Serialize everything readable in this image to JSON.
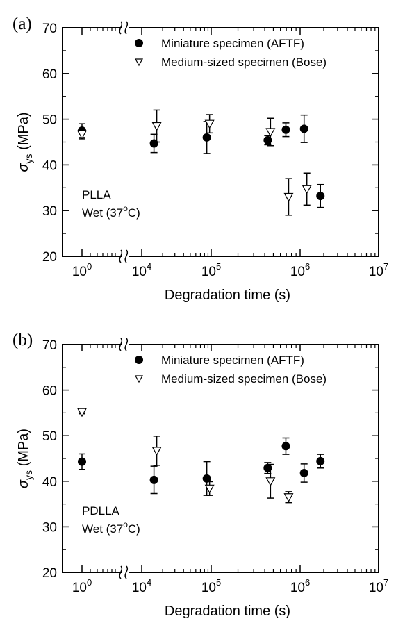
{
  "chart_data": [
    {
      "type": "scatter",
      "panel_label": "(a)",
      "xlabel": "Degradation time (s)",
      "ylabel": "σ",
      "ylabel_sub": "ys",
      "ylabel_unit": " (MPa)",
      "xscale": "log",
      "axis_break": "between 10^0 and 10^4",
      "ylim": [
        20,
        70
      ],
      "yticks": [
        20,
        30,
        40,
        50,
        60,
        70
      ],
      "xtick_labels": [
        {
          "base": "10",
          "exp": "0"
        },
        {
          "base": "10",
          "exp": "4"
        },
        {
          "base": "10",
          "exp": "5"
        },
        {
          "base": "10",
          "exp": "6"
        },
        {
          "base": "10",
          "exp": "7"
        }
      ],
      "legend_position": "top-right",
      "annotation": [
        "PLLA",
        "Wet (37",
        "o",
        "C)"
      ],
      "series": [
        {
          "name": "Miniature specimen (AFTF)",
          "marker": "filled-circle",
          "points": [
            {
              "x": 1,
              "y": 47.5,
              "err": 1.5
            },
            {
              "x": 15000,
              "y": 44.7,
              "err": 2.0
            },
            {
              "x": 86400,
              "y": 46.0,
              "err": 3.5
            },
            {
              "x": 432000,
              "y": 45.4,
              "err": 1.0
            },
            {
              "x": 691200,
              "y": 47.7,
              "err": 1.5
            },
            {
              "x": 1123200,
              "y": 47.9,
              "err": 3.0
            },
            {
              "x": 1814400,
              "y": 33.2,
              "err": 2.5
            }
          ]
        },
        {
          "name": "Medium-sized specimen (Bose)",
          "marker": "open-triangle-down",
          "points": [
            {
              "x": 1,
              "y": 46.7,
              "err": 1.0
            },
            {
              "x": 15000,
              "y": 48.5,
              "err": 3.5
            },
            {
              "x": 86400,
              "y": 49.0,
              "err": 2.0
            },
            {
              "x": 432000,
              "y": 47.2,
              "err": 3.0
            },
            {
              "x": 691200,
              "y": 33.0,
              "err": 4.0
            },
            {
              "x": 1123200,
              "y": 34.7,
              "err": 3.5
            }
          ]
        }
      ]
    },
    {
      "type": "scatter",
      "panel_label": "(b)",
      "xlabel": "Degradation time (s)",
      "ylabel": "σ",
      "ylabel_sub": "ys",
      "ylabel_unit": " (MPa)",
      "xscale": "log",
      "axis_break": "between 10^0 and 10^4",
      "ylim": [
        20,
        70
      ],
      "yticks": [
        20,
        30,
        40,
        50,
        60,
        70
      ],
      "xtick_labels": [
        {
          "base": "10",
          "exp": "0"
        },
        {
          "base": "10",
          "exp": "4"
        },
        {
          "base": "10",
          "exp": "5"
        },
        {
          "base": "10",
          "exp": "6"
        },
        {
          "base": "10",
          "exp": "7"
        }
      ],
      "legend_position": "top-right",
      "annotation": [
        "PDLLA",
        "Wet (37",
        "o",
        "C)"
      ],
      "series": [
        {
          "name": "Miniature specimen (AFTF)",
          "marker": "filled-circle",
          "points": [
            {
              "x": 1,
              "y": 44.3,
              "err": 1.7
            },
            {
              "x": 15000,
              "y": 40.3,
              "err": 3.0
            },
            {
              "x": 86400,
              "y": 40.6,
              "err": 3.7
            },
            {
              "x": 432000,
              "y": 42.9,
              "err": 1.2
            },
            {
              "x": 691200,
              "y": 47.7,
              "err": 1.8
            },
            {
              "x": 1123200,
              "y": 41.8,
              "err": 2.0
            },
            {
              "x": 1814400,
              "y": 44.4,
              "err": 1.5
            }
          ]
        },
        {
          "name": "Medium-sized specimen (Bose)",
          "marker": "open-triangle-down",
          "points": [
            {
              "x": 1,
              "y": 55.2,
              "err": 0.4
            },
            {
              "x": 15000,
              "y": 46.7,
              "err": 3.2
            },
            {
              "x": 86400,
              "y": 38.4,
              "err": 1.5
            },
            {
              "x": 432000,
              "y": 40.0,
              "err": 3.7
            },
            {
              "x": 691200,
              "y": 36.5,
              "err": 1.2
            }
          ]
        }
      ]
    }
  ]
}
